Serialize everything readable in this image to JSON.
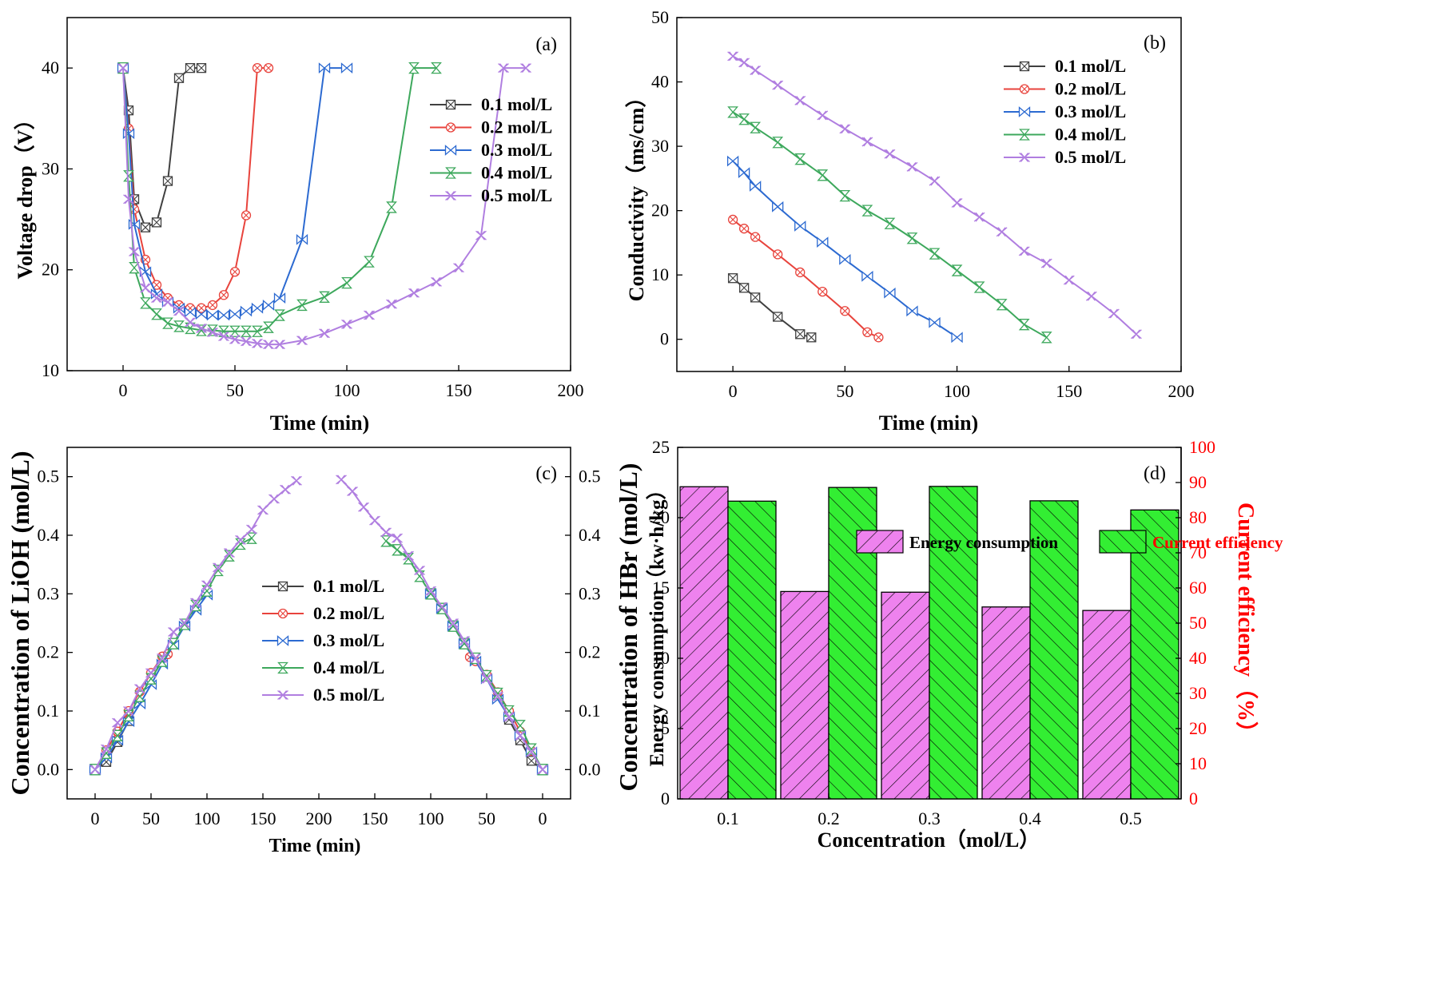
{
  "panels": {
    "a": {
      "label": "(a)"
    },
    "b": {
      "label": "(b)"
    },
    "c": {
      "label": "(c)"
    },
    "d": {
      "label": "(d)"
    }
  },
  "chart_data": [
    {
      "id": "a",
      "type": "line",
      "title": "",
      "panel_label": "(a)",
      "xlabel": "Time (min)",
      "ylabel": "Voltage drop（V）",
      "xlim": [
        -25,
        200
      ],
      "ylim": [
        10,
        45
      ],
      "xticks": [
        "0",
        "50",
        "100",
        "150",
        "200"
      ],
      "yticks": [
        "10",
        "20",
        "30",
        "40"
      ],
      "legend_position": "right",
      "series": [
        {
          "name": "0.1 mol/L",
          "color": "#404040",
          "marker": "box-x",
          "x": [
            0,
            2.5,
            5,
            10,
            15,
            20,
            25,
            30,
            35
          ],
          "y": [
            40,
            35.8,
            27,
            24.2,
            24.7,
            28.8,
            39,
            40,
            40
          ]
        },
        {
          "name": "0.2 mol/L",
          "color": "#e8433c",
          "marker": "circle-x",
          "x": [
            0,
            2.5,
            5,
            10,
            15,
            20,
            25,
            30,
            35,
            40,
            45,
            50,
            55,
            60,
            65
          ],
          "y": [
            40,
            34,
            26,
            21,
            18.5,
            17.2,
            16.5,
            16.2,
            16.2,
            16.5,
            17.5,
            19.8,
            25.4,
            40,
            40
          ]
        },
        {
          "name": "0.3 mol/L",
          "color": "#2c6ad1",
          "marker": "bowtie",
          "x": [
            0,
            2.5,
            5,
            10,
            15,
            20,
            25,
            30,
            35,
            40,
            45,
            50,
            55,
            60,
            65,
            70,
            80,
            90,
            100
          ],
          "y": [
            40,
            33.5,
            24.5,
            19.8,
            17.6,
            16.8,
            16.2,
            15.8,
            15.6,
            15.5,
            15.5,
            15.6,
            15.9,
            16.2,
            16.5,
            17.2,
            23,
            40,
            40
          ]
        },
        {
          "name": "0.4 mol/L",
          "color": "#3da85c",
          "marker": "hourglass",
          "x": [
            0,
            2.5,
            5,
            10,
            15,
            20,
            25,
            30,
            35,
            40,
            45,
            50,
            55,
            60,
            65,
            70,
            80,
            90,
            100,
            110,
            120,
            130,
            140
          ],
          "y": [
            40,
            29.3,
            20.2,
            16.7,
            15.6,
            14.7,
            14.4,
            14.2,
            14,
            14,
            13.9,
            13.9,
            13.9,
            13.9,
            14.3,
            15.5,
            16.5,
            17.3,
            18.7,
            20.8,
            26.2,
            40,
            40
          ]
        },
        {
          "name": "0.5 mol/L",
          "color": "#b07ee0",
          "marker": "xx",
          "x": [
            0,
            2.5,
            5,
            10,
            15,
            20,
            25,
            30,
            35,
            40,
            45,
            50,
            55,
            60,
            65,
            70,
            80,
            90,
            100,
            110,
            120,
            130,
            140,
            150,
            160,
            170,
            180
          ],
          "y": [
            40,
            27,
            21.8,
            18.2,
            17.2,
            16.8,
            15.9,
            14.8,
            14.2,
            13.8,
            13.4,
            13.1,
            12.9,
            12.7,
            12.6,
            12.6,
            13,
            13.7,
            14.6,
            15.5,
            16.6,
            17.7,
            18.8,
            20.2,
            23.4,
            40,
            40
          ]
        }
      ]
    },
    {
      "id": "b",
      "type": "line",
      "title": "",
      "panel_label": "(b)",
      "xlabel": "Time (min)",
      "ylabel": "Conductivity（ms/cm）",
      "xlim": [
        -25,
        200
      ],
      "ylim": [
        -5,
        50
      ],
      "xticks": [
        "0",
        "50",
        "100",
        "150",
        "200"
      ],
      "yticks": [
        "0",
        "10",
        "20",
        "30",
        "40",
        "50"
      ],
      "legend_position": "top-right",
      "series": [
        {
          "name": "0.1 mol/L",
          "color": "#404040",
          "marker": "box-x",
          "x": [
            0,
            5,
            10,
            20,
            30,
            35
          ],
          "y": [
            9.5,
            8,
            6.5,
            3.5,
            0.8,
            0.3
          ]
        },
        {
          "name": "0.2 mol/L",
          "color": "#e8433c",
          "marker": "circle-x",
          "x": [
            0,
            5,
            10,
            20,
            30,
            40,
            50,
            60,
            65
          ],
          "y": [
            18.6,
            17.2,
            15.9,
            13.2,
            10.4,
            7.4,
            4.4,
            1.1,
            0.3
          ]
        },
        {
          "name": "0.3 mol/L",
          "color": "#2c6ad1",
          "marker": "bowtie",
          "x": [
            0,
            5,
            10,
            20,
            30,
            40,
            50,
            60,
            70,
            80,
            90,
            100
          ],
          "y": [
            27.7,
            25.9,
            23.8,
            20.6,
            17.6,
            15.1,
            12.4,
            9.8,
            7.2,
            4.4,
            2.6,
            0.3
          ]
        },
        {
          "name": "0.4 mol/L",
          "color": "#3da85c",
          "marker": "hourglass",
          "x": [
            0,
            5,
            10,
            20,
            30,
            40,
            50,
            60,
            70,
            80,
            90,
            100,
            110,
            120,
            130,
            140
          ],
          "y": [
            35.3,
            34.2,
            32.9,
            30.6,
            28,
            25.5,
            22.3,
            20,
            18,
            15.7,
            13.3,
            10.7,
            8.1,
            5.4,
            2.3,
            0.3
          ]
        },
        {
          "name": "0.5 mol/L",
          "color": "#b07ee0",
          "marker": "xx",
          "x": [
            0,
            5,
            10,
            20,
            30,
            40,
            50,
            60,
            70,
            80,
            90,
            100,
            110,
            120,
            130,
            140,
            150,
            160,
            170,
            180
          ],
          "y": [
            44,
            43,
            41.8,
            39.5,
            37.1,
            34.8,
            32.7,
            30.7,
            28.8,
            26.8,
            24.6,
            21.2,
            19,
            16.7,
            13.7,
            11.8,
            9.2,
            6.7,
            4,
            0.8
          ]
        }
      ]
    },
    {
      "id": "c",
      "type": "line",
      "title": "",
      "panel_label": "(c)",
      "xlabel": "Time (min)",
      "ylabel": "Concentration of LiOH (mol/L)",
      "ylabel_right": "Concentration of HBr (mol/L)",
      "xlim": [
        -25,
        425
      ],
      "ylim": [
        -0.05,
        0.55
      ],
      "xticks": [
        "0",
        "50",
        "100",
        "150",
        "200",
        "150",
        "100",
        "50",
        "0"
      ],
      "yticks": [
        "0.0",
        "0.1",
        "0.2",
        "0.3",
        "0.4",
        "0.5"
      ],
      "legend_position": "center-left",
      "series": [
        {
          "name": "0.1 mol/L",
          "color": "#404040",
          "marker": "box-x",
          "left": {
            "x": [
              0,
              10,
              20,
              30
            ],
            "y": [
              0,
              0.013,
              0.047,
              0.083
            ]
          },
          "right": {
            "x": [
              0,
              10,
              20,
              30
            ],
            "y": [
              0,
              0.015,
              0.05,
              0.085
            ]
          }
        },
        {
          "name": "0.2 mol/L",
          "color": "#e8433c",
          "marker": "circle-x",
          "left": {
            "x": [
              0,
              10,
              20,
              30,
              40,
              50,
              60,
              65
            ],
            "y": [
              0,
              0.033,
              0.065,
              0.1,
              0.133,
              0.165,
              0.193,
              0.197
            ]
          },
          "right": {
            "x": [
              0,
              10,
              20,
              30,
              40,
              50,
              60,
              65
            ],
            "y": [
              0,
              0.032,
              0.065,
              0.1,
              0.132,
              0.162,
              0.185,
              0.192
            ]
          }
        },
        {
          "name": "0.3 mol/L",
          "color": "#2c6ad1",
          "marker": "bowtie",
          "left": {
            "x": [
              0,
              10,
              20,
              30,
              40,
              50,
              60,
              70,
              80,
              90,
              100
            ],
            "y": [
              0,
              0.02,
              0.05,
              0.082,
              0.112,
              0.145,
              0.18,
              0.213,
              0.245,
              0.272,
              0.298
            ]
          },
          "right": {
            "x": [
              0,
              10,
              20,
              30,
              40,
              50,
              60,
              70,
              80,
              90,
              100
            ],
            "y": [
              0,
              0.03,
              0.058,
              0.09,
              0.12,
              0.155,
              0.185,
              0.215,
              0.245,
              0.275,
              0.3
            ]
          }
        },
        {
          "name": "0.4 mol/L",
          "color": "#3da85c",
          "marker": "hourglass",
          "left": {
            "x": [
              0,
              10,
              20,
              30,
              40,
              50,
              60,
              70,
              80,
              90,
              100,
              110,
              120,
              130,
              140
            ],
            "y": [
              0,
              0.028,
              0.058,
              0.092,
              0.125,
              0.155,
              0.185,
              0.215,
              0.248,
              0.28,
              0.305,
              0.34,
              0.365,
              0.385,
              0.395
            ]
          },
          "right": {
            "x": [
              0,
              10,
              20,
              30,
              40,
              50,
              60,
              70,
              80,
              90,
              100,
              110,
              120,
              130,
              140
            ],
            "y": [
              0,
              0.035,
              0.075,
              0.1,
              0.13,
              0.16,
              0.19,
              0.215,
              0.245,
              0.275,
              0.3,
              0.33,
              0.36,
              0.375,
              0.39
            ]
          }
        },
        {
          "name": "0.5 mol/L",
          "color": "#b07ee0",
          "marker": "xx",
          "left": {
            "x": [
              0,
              10,
              20,
              30,
              40,
              50,
              60,
              70,
              80,
              90,
              100,
              110,
              120,
              130,
              140,
              150,
              160,
              170,
              180
            ],
            "y": [
              0,
              0.035,
              0.08,
              0.1,
              0.138,
              0.165,
              0.19,
              0.235,
              0.25,
              0.285,
              0.315,
              0.345,
              0.37,
              0.392,
              0.41,
              0.443,
              0.462,
              0.478,
              0.493
            ]
          },
          "right": {
            "x": [
              0,
              10,
              20,
              30,
              40,
              50,
              60,
              70,
              80,
              90,
              100,
              110,
              120,
              130,
              140,
              150,
              160,
              170,
              180
            ],
            "y": [
              0,
              0.03,
              0.058,
              0.09,
              0.125,
              0.155,
              0.19,
              0.22,
              0.25,
              0.278,
              0.305,
              0.34,
              0.365,
              0.395,
              0.405,
              0.425,
              0.448,
              0.475,
              0.495
            ]
          }
        }
      ]
    },
    {
      "id": "d",
      "type": "bar",
      "title": "",
      "panel_label": "(d)",
      "xlabel": "Concentration（mol/L）",
      "ylabel": "Energy consumption（kw·h/kg）",
      "ylabel_right": "Current efficiency（%）",
      "categories": [
        "0.1",
        "0.2",
        "0.3",
        "0.4",
        "0.5"
      ],
      "ylim": [
        0,
        25
      ],
      "ylim_right": [
        0,
        100
      ],
      "yticks": [
        "0",
        "5",
        "10",
        "15",
        "20",
        "25"
      ],
      "yticks_right": [
        "0",
        "10",
        "20",
        "30",
        "40",
        "50",
        "60",
        "70",
        "80",
        "90",
        "100"
      ],
      "legend_position": "top",
      "series": [
        {
          "name": "Energy consumption",
          "axis": "left",
          "color": "#ee82ee",
          "values": [
            22.2,
            14.75,
            14.7,
            13.65,
            13.4
          ]
        },
        {
          "name": "Current efficiency",
          "axis": "right",
          "color": "#33ee33",
          "label_color": "#ff0000",
          "values": [
            84.7,
            88.6,
            88.9,
            84.8,
            82.2
          ]
        }
      ]
    }
  ]
}
